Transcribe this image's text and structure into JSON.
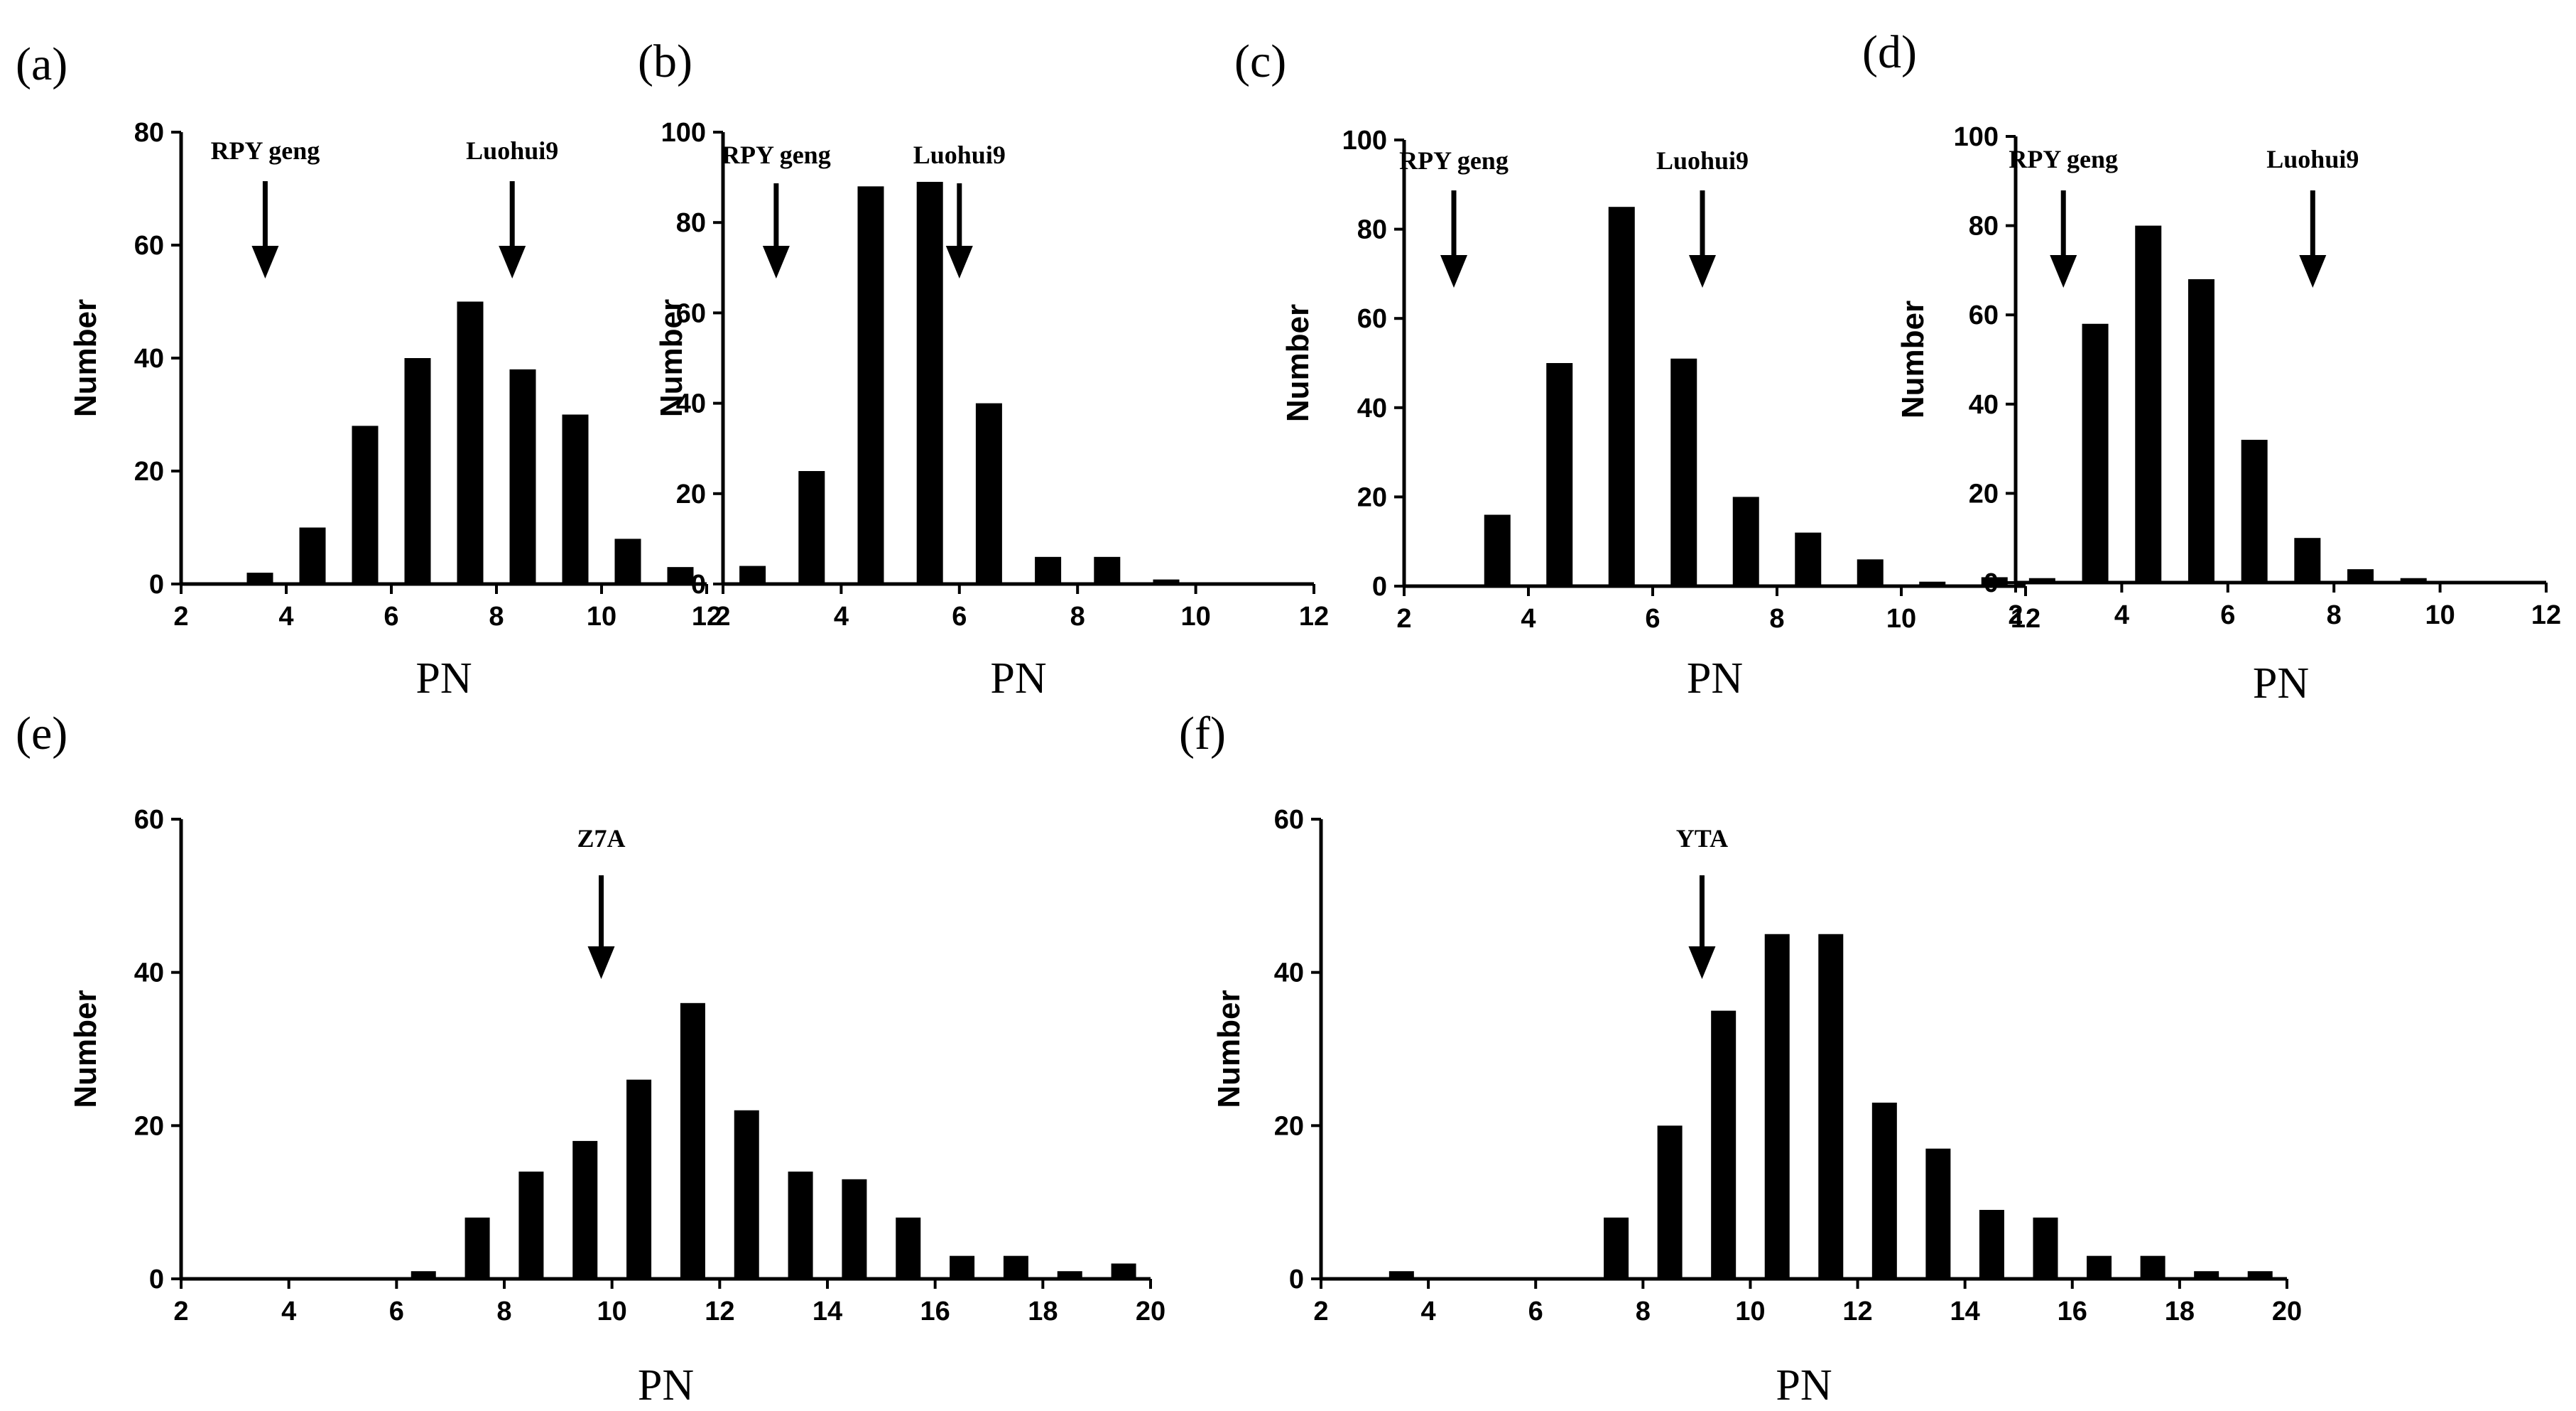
{
  "chart_data": [
    {
      "panel_label": "(a)",
      "type": "bar",
      "xlabel": "PN",
      "ylabel": "Number",
      "xlim": [
        2,
        12
      ],
      "ylim": [
        0,
        80
      ],
      "xticks": [
        2,
        4,
        6,
        8,
        10,
        12
      ],
      "yticks": [
        0,
        20,
        40,
        60,
        80
      ],
      "x": [
        3.5,
        4.5,
        5.5,
        6.5,
        7.5,
        8.5,
        9.5,
        10.5,
        11.5
      ],
      "values": [
        2,
        10,
        28,
        40,
        50,
        38,
        30,
        8,
        3
      ],
      "annotations": [
        {
          "text": "RPY geng",
          "x": 3.6
        },
        {
          "text": "Luohui9",
          "x": 8.3
        }
      ]
    },
    {
      "panel_label": "(b)",
      "type": "bar",
      "xlabel": "PN",
      "ylabel": "Number",
      "xlim": [
        2,
        12
      ],
      "ylim": [
        0,
        100
      ],
      "xticks": [
        2,
        4,
        6,
        8,
        10,
        12
      ],
      "yticks": [
        0,
        20,
        40,
        60,
        80,
        100
      ],
      "x": [
        2.5,
        3.5,
        4.5,
        5.5,
        6.5,
        7.5,
        8.5,
        9.5
      ],
      "values": [
        4,
        25,
        88,
        89,
        40,
        6,
        6,
        1
      ],
      "annotations": [
        {
          "text": "RPY geng",
          "x": 2.9
        },
        {
          "text": "Luohui9",
          "x": 6.0
        }
      ]
    },
    {
      "panel_label": "(c)",
      "type": "bar",
      "xlabel": "PN",
      "ylabel": "Number",
      "xlim": [
        2,
        12
      ],
      "ylim": [
        0,
        100
      ],
      "xticks": [
        2,
        4,
        6,
        8,
        10,
        12
      ],
      "yticks": [
        0,
        20,
        40,
        60,
        80,
        100
      ],
      "x": [
        3.5,
        4.5,
        5.5,
        6.5,
        7.5,
        8.5,
        9.5,
        10.5,
        11.5
      ],
      "values": [
        16,
        50,
        85,
        51,
        20,
        12,
        6,
        1,
        2
      ],
      "annotations": [
        {
          "text": "RPY geng",
          "x": 2.8
        },
        {
          "text": "Luohui9",
          "x": 6.8
        }
      ]
    },
    {
      "panel_label": "(d)",
      "type": "bar",
      "xlabel": "PN",
      "ylabel": "Number",
      "xlim": [
        2,
        12
      ],
      "ylim": [
        0,
        100
      ],
      "xticks": [
        2,
        4,
        6,
        8,
        10,
        12
      ],
      "yticks": [
        0,
        20,
        40,
        60,
        80,
        100
      ],
      "x": [
        2.5,
        3.5,
        4.5,
        5.5,
        6.5,
        7.5,
        8.5,
        9.5
      ],
      "values": [
        1,
        58,
        80,
        68,
        32,
        10,
        3,
        1
      ],
      "annotations": [
        {
          "text": "RPY geng",
          "x": 2.9
        },
        {
          "text": "Luohui9",
          "x": 7.6
        }
      ]
    },
    {
      "panel_label": "(e)",
      "type": "bar",
      "xlabel": "PN",
      "ylabel": "Number",
      "xlim": [
        2,
        20
      ],
      "ylim": [
        0,
        60
      ],
      "xticks": [
        2,
        4,
        6,
        8,
        10,
        12,
        14,
        16,
        18,
        20
      ],
      "yticks": [
        0,
        20,
        40,
        60
      ],
      "x": [
        6.5,
        7.5,
        8.5,
        9.5,
        10.5,
        11.5,
        12.5,
        13.5,
        14.5,
        15.5,
        16.5,
        17.5,
        18.5,
        19.5
      ],
      "values": [
        1,
        8,
        14,
        18,
        26,
        36,
        22,
        14,
        13,
        8,
        3,
        3,
        1,
        2
      ],
      "annotations": [
        {
          "text": "Z7A",
          "x": 9.8
        }
      ]
    },
    {
      "panel_label": "(f)",
      "type": "bar",
      "xlabel": "PN",
      "ylabel": "Number",
      "xlim": [
        2,
        20
      ],
      "ylim": [
        0,
        60
      ],
      "xticks": [
        2,
        4,
        6,
        8,
        10,
        12,
        14,
        16,
        18,
        20
      ],
      "yticks": [
        0,
        20,
        40,
        60
      ],
      "x": [
        3.5,
        7.5,
        8.5,
        9.5,
        10.5,
        11.5,
        12.5,
        13.5,
        14.5,
        15.5,
        16.5,
        17.5,
        18.5,
        19.5
      ],
      "values": [
        1,
        8,
        20,
        35,
        45,
        45,
        23,
        17,
        9,
        8,
        3,
        3,
        1,
        1
      ],
      "annotations": [
        {
          "text": "YTA",
          "x": 9.1
        }
      ]
    }
  ]
}
